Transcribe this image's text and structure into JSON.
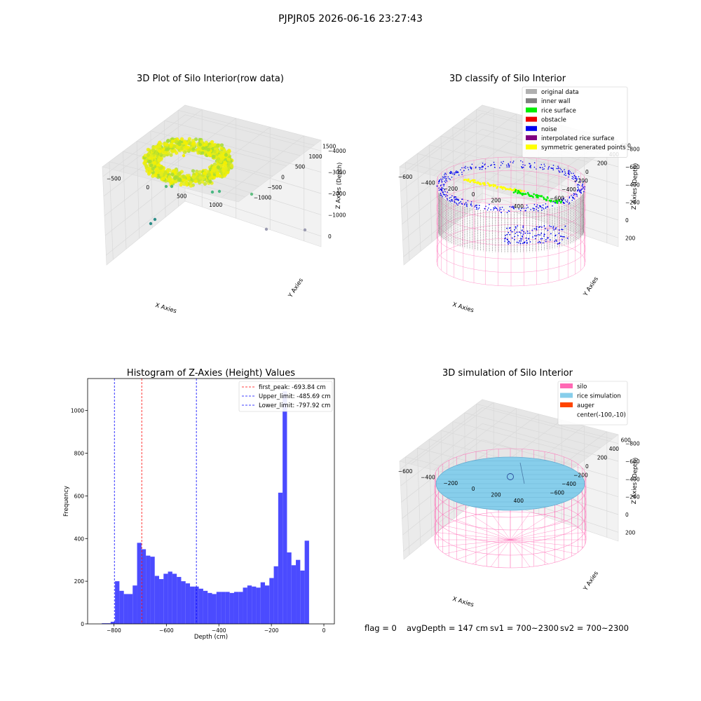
{
  "figure": {
    "suptitle": "PJPJR05 2026-06-16 23:27:43",
    "status": {
      "flag": "flag = 0",
      "avg_depth": "avgDepth = 147 cm",
      "sv1": "sv1 = 700~2300",
      "sv2": "sv2 = 700~2300"
    }
  },
  "colors": {
    "hist_bar": "#4b4bff",
    "peak_line": "#ff0000",
    "limit_line": "#0000ff",
    "pane": "#f2f2f2",
    "grid": "#d9d9d9",
    "silo_wire": "#ff69b4",
    "inner_wall": "#808080",
    "rice_surface": "#00ee00",
    "noise": "#0000ee",
    "symmetric": "#ffff00",
    "interpolated": "#800080",
    "rice_sim": "#87ceeb",
    "auger": "#ff4500"
  },
  "chart_data": [
    {
      "type": "scatter",
      "title": "3D Plot of Silo Interior(row data)",
      "xlabel": "X Axies",
      "ylabel": "Y Axies",
      "zlabel": "Z Axies (Depth)",
      "x_ticks": [
        "−500",
        "0",
        "500",
        "1000"
      ],
      "y_ticks": [
        "−1000",
        "−500",
        "0",
        "500",
        "1000",
        "1500"
      ],
      "z_ticks": [
        "−4000",
        "−3000",
        "−2000",
        "−1000",
        "0"
      ],
      "grid": true
    },
    {
      "type": "scatter",
      "title": "3D classify of Silo Interior",
      "xlabel": "X Axies",
      "ylabel": "Y Axies",
      "zlabel": "Z Axies (Depth)",
      "x_ticks": [
        "−600",
        "−400",
        "−200",
        "0",
        "200",
        "400"
      ],
      "y_ticks": [
        "−600",
        "−400",
        "−200",
        "0",
        "200",
        "400",
        "600"
      ],
      "z_ticks": [
        "−800",
        "−600",
        "−400",
        "−200",
        "0",
        "200"
      ],
      "legend_position": "top-right",
      "legend": [
        {
          "label": "original data",
          "color": "#b0b0b0"
        },
        {
          "label": "inner wall",
          "color": "#808080"
        },
        {
          "label": "rice surface",
          "color": "#00ee00"
        },
        {
          "label": "obstacle",
          "color": "#ee0000"
        },
        {
          "label": "noise",
          "color": "#0000ee"
        },
        {
          "label": "interpolated rice surface",
          "color": "#800080"
        },
        {
          "label": "symmetric generated points",
          "color": "#ffff00"
        }
      ],
      "grid": true
    },
    {
      "type": "bar",
      "title": "Histogram of Z-Axies (Height) Values",
      "xlabel": "Depth (cm)",
      "ylabel": "Frequency",
      "xlim": [
        -900,
        40
      ],
      "ylim": [
        0,
        1150
      ],
      "x_ticks": [
        {
          "value": -800,
          "label": "−800"
        },
        {
          "value": -600,
          "label": "−600"
        },
        {
          "value": -400,
          "label": "−400"
        },
        {
          "value": -200,
          "label": "−200"
        },
        {
          "value": 0,
          "label": "0"
        }
      ],
      "y_ticks": [
        {
          "value": 0,
          "label": "0"
        },
        {
          "value": 200,
          "label": "200"
        },
        {
          "value": 400,
          "label": "400"
        },
        {
          "value": 600,
          "label": "600"
        },
        {
          "value": 800,
          "label": "800"
        },
        {
          "value": 1000,
          "label": "1000"
        }
      ],
      "bin_start": -846,
      "bin_width": 16.8,
      "values": [
        3,
        3,
        10,
        200,
        155,
        140,
        140,
        180,
        380,
        350,
        320,
        315,
        225,
        210,
        235,
        245,
        235,
        220,
        200,
        190,
        175,
        175,
        165,
        155,
        145,
        140,
        150,
        150,
        150,
        145,
        150,
        150,
        170,
        180,
        175,
        170,
        195,
        180,
        215,
        270,
        615,
        1090,
        335,
        275,
        300,
        250,
        390
      ],
      "vlines": [
        {
          "value": -693.84,
          "label": "first_peak: -693.84 cm",
          "color": "#ff0000"
        },
        {
          "value": -485.69,
          "label": "Upper_limit: -485.69 cm",
          "color": "#0000ff"
        },
        {
          "value": -797.92,
          "label": "Lower_limit: -797.92 cm",
          "color": "#0000ff"
        }
      ],
      "legend_position": "top-right"
    },
    {
      "type": "surface",
      "title": "3D simulation of Silo Interior",
      "xlabel": "X Axies",
      "ylabel": "Y Axies",
      "zlabel": "Z Axies (Depth)",
      "x_ticks": [
        "−600",
        "−400",
        "−200",
        "0",
        "200",
        "400"
      ],
      "y_ticks": [
        "−600",
        "−400",
        "−200",
        "0",
        "200",
        "400",
        "600"
      ],
      "z_ticks": [
        "−800",
        "−600",
        "−400",
        "−200",
        "0",
        "200"
      ],
      "legend_position": "top-right",
      "legend": [
        {
          "label": "silo",
          "color": "#ff69b4"
        },
        {
          "label": "rice simulation",
          "color": "#87ceeb"
        },
        {
          "label": "auger",
          "color": "#ff4500"
        },
        {
          "label": "center(-100,-10)",
          "color": ""
        }
      ],
      "grid": true
    }
  ]
}
